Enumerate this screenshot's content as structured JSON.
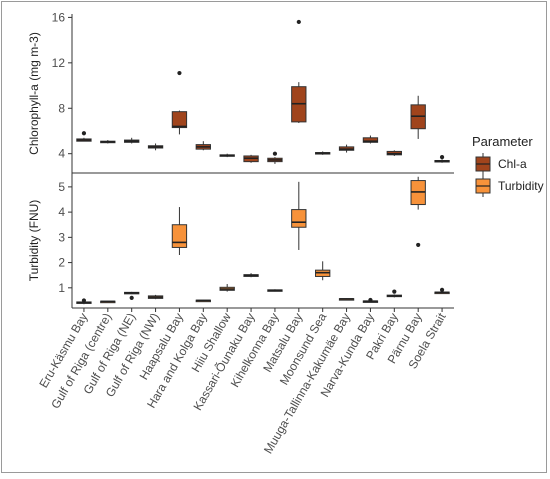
{
  "chart_data": {
    "type": "boxplot",
    "sites": [
      "Eru-Käsmu Bay",
      "Gulf of Riga (centre)",
      "Gulf of Riga (NE)",
      "Gulf of Riga (NW)",
      "Haapsalu Bay",
      "Hara and Kolga Bay",
      "Hiiu Shallow",
      "Kassari-Õunaku Bay",
      "Kihelkonna Bay",
      "Matsalu Bay",
      "Moonsund Sea",
      "Muuga-Tallinna-Kakumäe Bay",
      "Narva-Kunda Bay",
      "Pakri Bay",
      "Pärnu Bay",
      "Soela Strait"
    ],
    "legend": {
      "title": "Parameter",
      "entries": [
        {
          "label": "Chl-a",
          "color": "#a0441c"
        },
        {
          "label": "Turbidity",
          "color": "#f7923a"
        }
      ]
    },
    "panels": [
      {
        "parameter": "Chl-a",
        "ylabel": "Chlorophyll-a (mg m-3)",
        "ylim": [
          2.3,
          16.3
        ],
        "yticks": [
          4,
          8,
          12,
          16
        ],
        "boxes": [
          {
            "min": 5.1,
            "q1": 5.1,
            "median": 5.2,
            "q3": 5.3,
            "max": 5.4,
            "outliers": [
              5.8
            ]
          },
          {
            "min": 4.9,
            "q1": 5.0,
            "median": 5.05,
            "q3": 5.1,
            "max": 5.2,
            "outliers": []
          },
          {
            "min": 4.9,
            "q1": 5.0,
            "median": 5.1,
            "q3": 5.2,
            "max": 5.4,
            "outliers": []
          },
          {
            "min": 4.3,
            "q1": 4.5,
            "median": 4.6,
            "q3": 4.7,
            "max": 4.9,
            "outliers": []
          },
          {
            "min": 5.7,
            "q1": 6.3,
            "median": 6.4,
            "q3": 7.7,
            "max": 7.8,
            "outliers": [
              11.1
            ]
          },
          {
            "min": 4.3,
            "q1": 4.4,
            "median": 4.6,
            "q3": 4.8,
            "max": 5.1,
            "outliers": []
          },
          {
            "min": 3.7,
            "q1": 3.8,
            "median": 3.85,
            "q3": 3.9,
            "max": 4.0,
            "outliers": []
          },
          {
            "min": 3.2,
            "q1": 3.3,
            "median": 3.6,
            "q3": 3.8,
            "max": 3.9,
            "outliers": []
          },
          {
            "min": 3.1,
            "q1": 3.3,
            "median": 3.45,
            "q3": 3.6,
            "max": 3.7,
            "outliers": [
              4.0
            ]
          },
          {
            "min": 6.7,
            "q1": 6.8,
            "median": 8.4,
            "q3": 9.9,
            "max": 10.3,
            "outliers": [
              15.6
            ]
          },
          {
            "min": 3.9,
            "q1": 4.0,
            "median": 4.05,
            "q3": 4.1,
            "max": 4.2,
            "outliers": []
          },
          {
            "min": 4.1,
            "q1": 4.3,
            "median": 4.4,
            "q3": 4.6,
            "max": 4.8,
            "outliers": []
          },
          {
            "min": 4.9,
            "q1": 5.0,
            "median": 5.1,
            "q3": 5.4,
            "max": 5.6,
            "outliers": []
          },
          {
            "min": 3.8,
            "q1": 3.9,
            "median": 4.0,
            "q3": 4.2,
            "max": 4.3,
            "outliers": []
          },
          {
            "min": 5.3,
            "q1": 6.2,
            "median": 7.3,
            "q3": 8.3,
            "max": 9.1,
            "outliers": []
          },
          {
            "min": 3.2,
            "q1": 3.3,
            "median": 3.35,
            "q3": 3.4,
            "max": 3.5,
            "outliers": [
              3.7
            ]
          }
        ]
      },
      {
        "parameter": "Turbidity",
        "ylabel": "Turbidity (FNU)",
        "ylim": [
          0.2,
          5.55
        ],
        "yticks": [
          1,
          2,
          3,
          4,
          5
        ],
        "boxes": [
          {
            "min": 0.35,
            "q1": 0.4,
            "median": 0.42,
            "q3": 0.44,
            "max": 0.47,
            "outliers": [
              0.5
            ]
          },
          {
            "min": 0.44,
            "q1": 0.45,
            "median": 0.46,
            "q3": 0.47,
            "max": 0.48,
            "outliers": []
          },
          {
            "min": 0.78,
            "q1": 0.79,
            "median": 0.8,
            "q3": 0.82,
            "max": 0.84,
            "outliers": [
              0.6
            ]
          },
          {
            "min": 0.55,
            "q1": 0.58,
            "median": 0.63,
            "q3": 0.68,
            "max": 0.72,
            "outliers": []
          },
          {
            "min": 2.3,
            "q1": 2.6,
            "median": 2.8,
            "q3": 3.5,
            "max": 4.2,
            "outliers": []
          },
          {
            "min": 0.48,
            "q1": 0.49,
            "median": 0.5,
            "q3": 0.51,
            "max": 0.52,
            "outliers": []
          },
          {
            "min": 0.85,
            "q1": 0.9,
            "median": 0.95,
            "q3": 1.02,
            "max": 1.15,
            "outliers": []
          },
          {
            "min": 1.42,
            "q1": 1.45,
            "median": 1.5,
            "q3": 1.52,
            "max": 1.58,
            "outliers": []
          },
          {
            "min": 0.85,
            "q1": 0.87,
            "median": 0.9,
            "q3": 0.92,
            "max": 0.94,
            "outliers": []
          },
          {
            "min": 2.5,
            "q1": 3.4,
            "median": 3.6,
            "q3": 4.1,
            "max": 5.2,
            "outliers": []
          },
          {
            "min": 1.3,
            "q1": 1.45,
            "median": 1.6,
            "q3": 1.7,
            "max": 2.05,
            "outliers": []
          },
          {
            "min": 0.54,
            "q1": 0.55,
            "median": 0.56,
            "q3": 0.57,
            "max": 0.58,
            "outliers": []
          },
          {
            "min": 0.45,
            "q1": 0.46,
            "median": 0.47,
            "q3": 0.48,
            "max": 0.5,
            "outliers": [
              0.52
            ]
          },
          {
            "min": 0.62,
            "q1": 0.65,
            "median": 0.68,
            "q3": 0.71,
            "max": 0.74,
            "outliers": [
              0.85
            ]
          },
          {
            "min": 4.1,
            "q1": 4.3,
            "median": 4.8,
            "q3": 5.25,
            "max": 5.4,
            "outliers": [
              2.7
            ]
          },
          {
            "min": 0.8,
            "q1": 0.81,
            "median": 0.82,
            "q3": 0.83,
            "max": 0.84,
            "outliers": [
              0.92
            ]
          }
        ]
      }
    ]
  }
}
